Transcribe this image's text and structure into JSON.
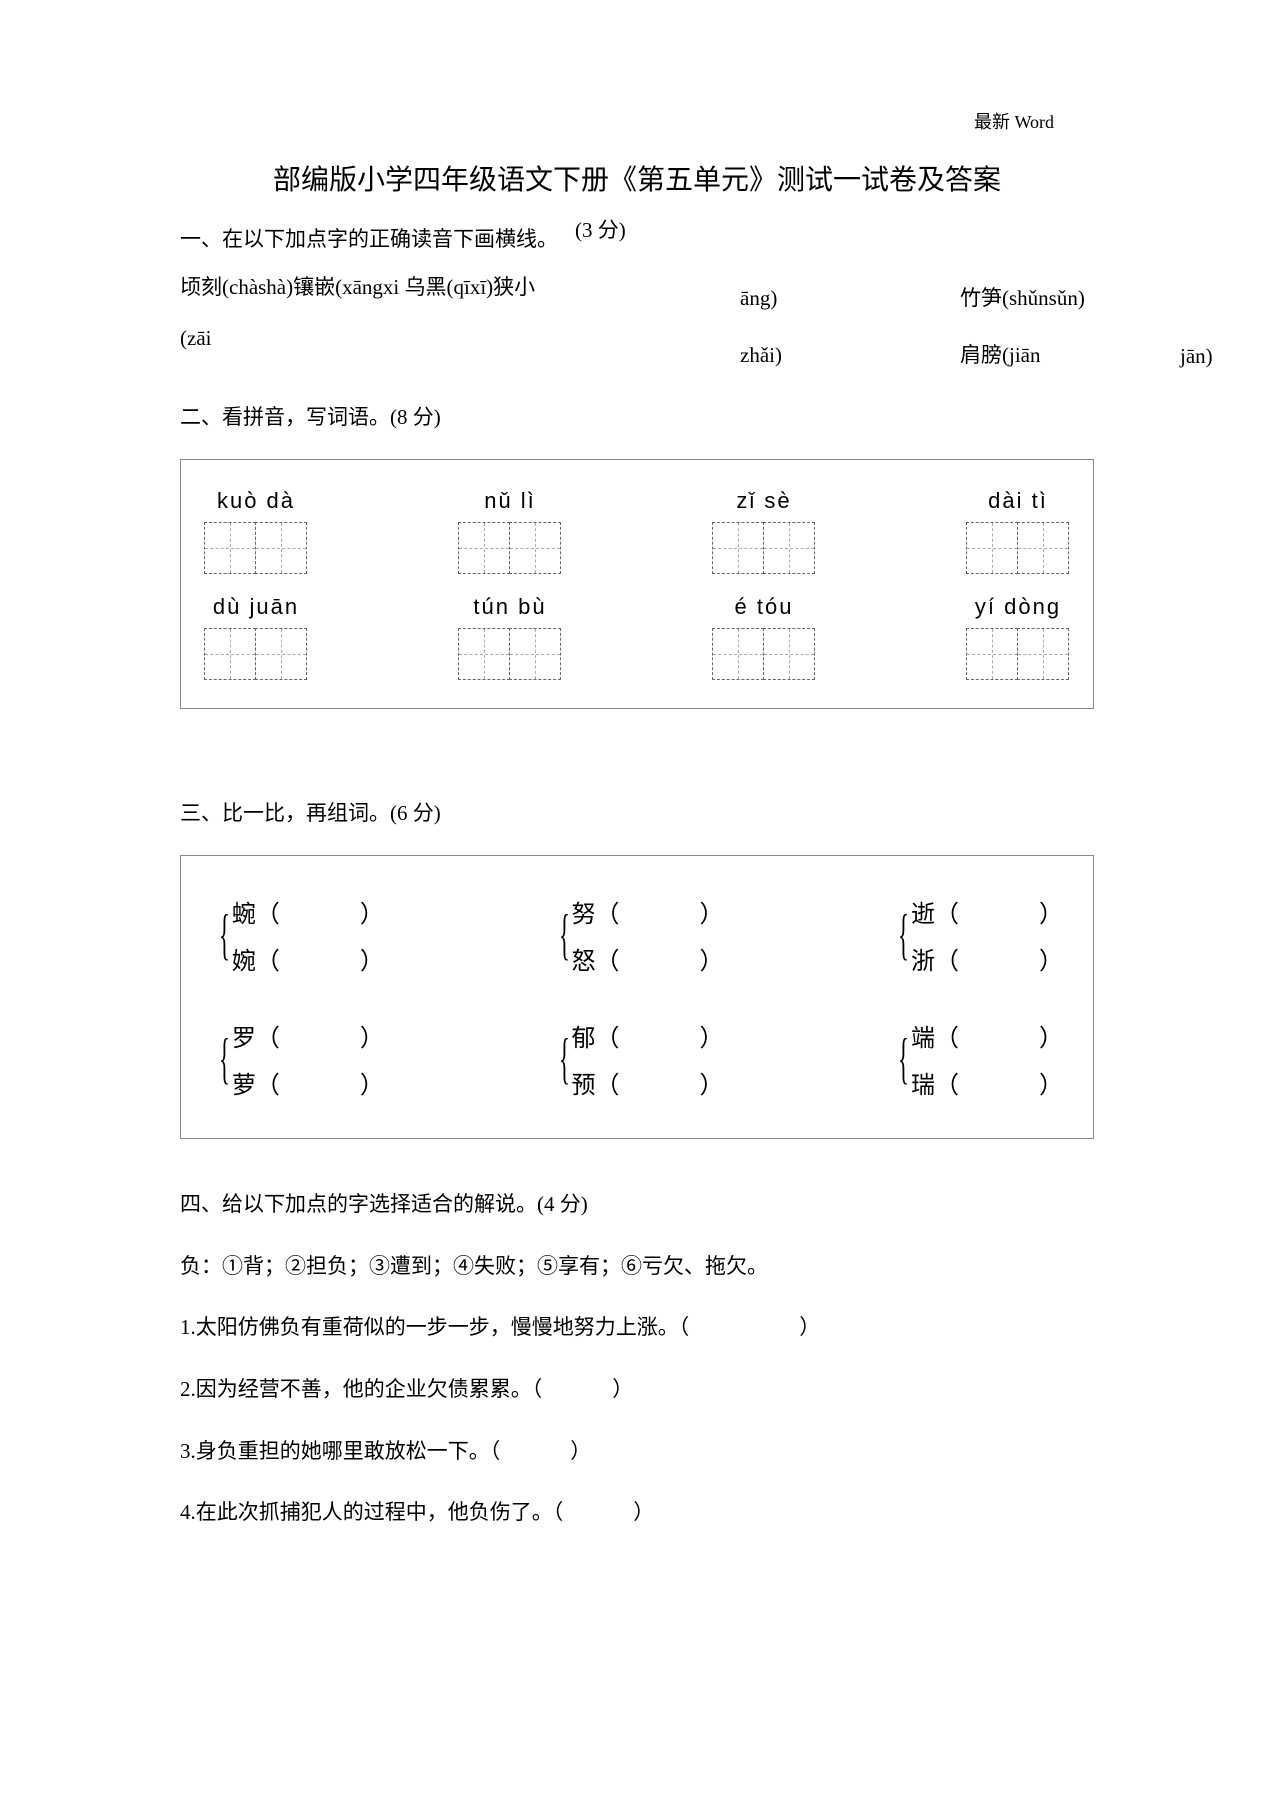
{
  "header": {
    "label": "最新 Word"
  },
  "title": "部编版小学四年级语文下册《第五单元》测试一试卷及答案",
  "section1": {
    "heading": "一、在以下加点字的正确读音下画横线。",
    "score": "(3 分)",
    "line2": "顷刻(chàshà)镶嵌(xāngxi 乌黑(qīxī)狭小",
    "line3": "(zāi",
    "mid1": "āng)",
    "mid2": "zhǎi)",
    "r1": "竹笋(shǔnsǔn)",
    "r2": "肩膀(jiān",
    "far": "jān)"
  },
  "section2": {
    "heading": "二、看拼音，写词语。(8 分)",
    "row1": [
      "kuò  dà",
      "nǔ  lì",
      "zǐ  sè",
      "dài  tì"
    ],
    "row2": [
      "dù  juān",
      "tún  bù",
      "é  tóu",
      "yí  dòng"
    ]
  },
  "section3": {
    "heading": "三、比一比，再组词。(6 分)",
    "pairs": [
      [
        [
          "蜿",
          "婉"
        ],
        [
          "努",
          "怒"
        ],
        [
          "逝",
          "浙"
        ]
      ],
      [
        [
          "罗",
          "萝"
        ],
        [
          "郁",
          "预"
        ],
        [
          "端",
          "瑞"
        ]
      ]
    ]
  },
  "section4": {
    "heading": "四、给以下加点的字选择适合的解说。(4 分)",
    "def": "负：①背；②担负；③遭到；④失败；⑤享有；⑥亏欠、拖欠。",
    "q1": "1.太阳仿佛负有重荷似的一步一步，慢慢地努力上涨。（",
    "q2": "2.因为经营不善，他的企业欠债累累。（",
    "q3": "3.身负重担的她哪里敢放松一下。（",
    "q4": "4.在此次抓捕犯人的过程中，他负伤了。（"
  },
  "colors": {
    "text": "#000000",
    "border": "#888888",
    "dash": "#666666",
    "background": "#ffffff"
  }
}
